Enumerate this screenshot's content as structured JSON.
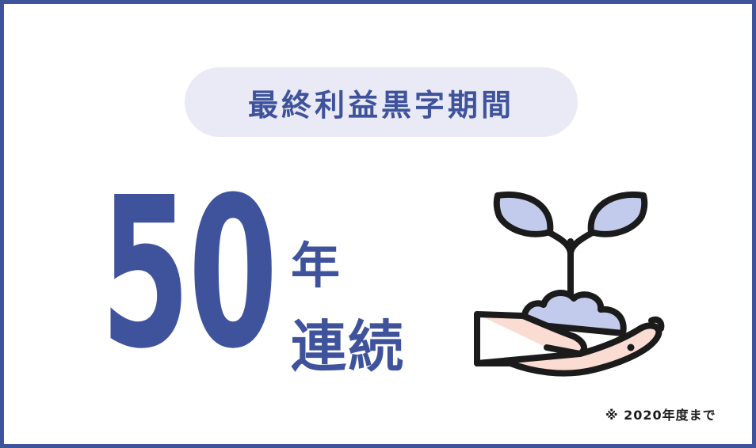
{
  "header": {
    "label": "最終利益黒字期間"
  },
  "main": {
    "number": "50",
    "unit_line1": "年",
    "unit_line2": "連続"
  },
  "illustration": {
    "icon": "seedling-in-hand-icon"
  },
  "footnote": "※ 2020年度まで",
  "colors": {
    "accent": "#3f539c",
    "pill_background": "#e9eaf6",
    "leaf": "#c3cbec",
    "hand": "#fbdcd2",
    "outline": "#1b1b1b"
  }
}
